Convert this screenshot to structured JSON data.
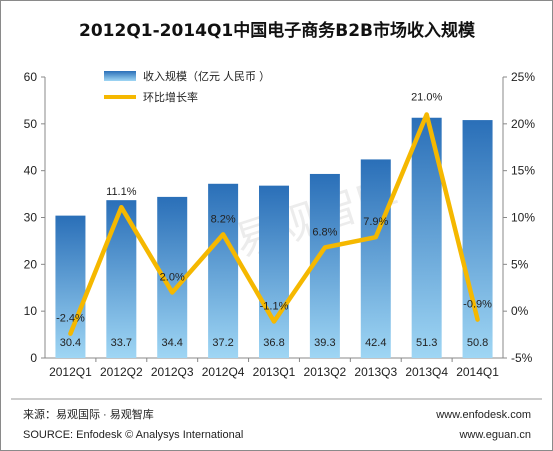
{
  "chart_data": {
    "type": "bar",
    "title": "2012Q1-2014Q1中国电子商务B2B市场收入规模",
    "categories": [
      "2012Q1",
      "2012Q2",
      "2012Q3",
      "2012Q4",
      "2013Q1",
      "2013Q2",
      "2013Q3",
      "2013Q4",
      "2014Q1"
    ],
    "series": [
      {
        "name": "收入规模（亿元 人民币 ）",
        "type": "bar",
        "axis": "left",
        "values": [
          30.4,
          33.7,
          34.4,
          37.2,
          36.8,
          39.3,
          42.4,
          51.3,
          50.8
        ],
        "labels": [
          "30.4",
          "33.7",
          "34.4",
          "37.2",
          "36.8",
          "39.3",
          "42.4",
          "51.3",
          "50.8"
        ]
      },
      {
        "name": "环比增长率",
        "type": "line",
        "axis": "right",
        "values": [
          -2.4,
          11.1,
          2.0,
          8.2,
          -1.1,
          6.8,
          7.9,
          21.0,
          -0.9
        ],
        "labels": [
          "-2.4%",
          "11.1%",
          "2.0%",
          "8.2%",
          "-1.1%",
          "6.8%",
          "7.9%",
          "21.0%",
          "-0.9%"
        ]
      }
    ],
    "left_axis": {
      "ylim": [
        0,
        60
      ],
      "ticks": [
        "0",
        "10",
        "20",
        "30",
        "40",
        "50",
        "60"
      ],
      "tick_values": [
        0,
        10,
        20,
        30,
        40,
        50,
        60
      ]
    },
    "right_axis": {
      "ylim": [
        -5,
        25
      ],
      "ticks": [
        "-5%",
        "0%",
        "5%",
        "10%",
        "15%",
        "20%",
        "25%"
      ],
      "tick_values": [
        -5,
        0,
        5,
        10,
        15,
        20,
        25
      ]
    },
    "legend_position": "top-left",
    "grid": false,
    "colors": {
      "bar_top": "#2a6fb8",
      "bar_bottom": "#9fd6f4",
      "line": "#f5b800"
    }
  },
  "watermark": "易观智库",
  "footer": {
    "source_cn": "来源：易观国际 · 易观智库",
    "source_en": "SOURCE: Enfodesk © Analysys International",
    "url1": "www.enfodesk.com",
    "url2": "www.eguan.cn"
  }
}
